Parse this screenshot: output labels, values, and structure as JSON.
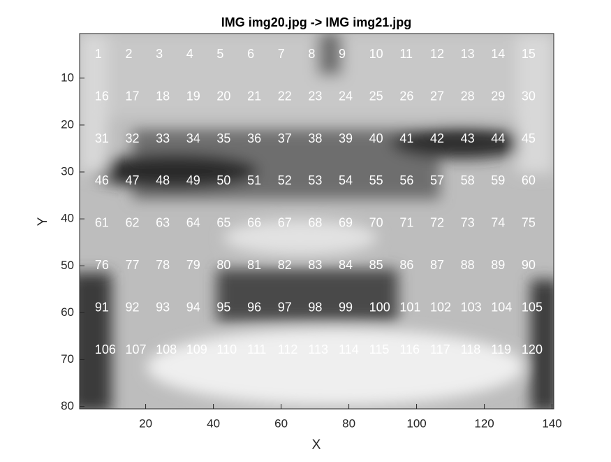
{
  "chart_data": {
    "type": "image",
    "title": "IMG img20.jpg -> IMG img21.jpg",
    "x_label": "X",
    "y_label": "Y",
    "xlim": [
      0.5,
      140.5
    ],
    "xticks": [
      20,
      40,
      60,
      80,
      100,
      120,
      140
    ],
    "ylim": [
      0.5,
      80.5
    ],
    "yticks": [
      10,
      20,
      30,
      40,
      50,
      60,
      70,
      80
    ],
    "y_reversed": true,
    "grid_x": [
      5,
      14,
      23,
      32,
      41,
      50,
      59,
      68,
      77,
      86,
      95,
      104,
      113,
      122,
      131
    ],
    "grid_y": [
      5,
      14,
      23,
      32,
      41,
      50,
      59,
      68
    ],
    "annotations": [
      "1",
      "2",
      "3",
      "4",
      "5",
      "6",
      "7",
      "8",
      "9",
      "10",
      "11",
      "12",
      "13",
      "14",
      "15",
      "16",
      "17",
      "18",
      "19",
      "20",
      "21",
      "22",
      "23",
      "24",
      "25",
      "26",
      "27",
      "28",
      "29",
      "30",
      "31",
      "32",
      "33",
      "34",
      "35",
      "36",
      "37",
      "38",
      "39",
      "40",
      "41",
      "42",
      "43",
      "44",
      "45",
      "46",
      "47",
      "48",
      "49",
      "50",
      "51",
      "52",
      "53",
      "54",
      "55",
      "56",
      "57",
      "58",
      "59",
      "60",
      "61",
      "62",
      "63",
      "64",
      "65",
      "66",
      "67",
      "68",
      "69",
      "70",
      "71",
      "72",
      "73",
      "74",
      "75",
      "76",
      "77",
      "78",
      "79",
      "80",
      "81",
      "82",
      "83",
      "84",
      "85",
      "86",
      "87",
      "88",
      "89",
      "90",
      "91",
      "92",
      "93",
      "94",
      "95",
      "96",
      "97",
      "98",
      "99",
      "100",
      "101",
      "102",
      "103",
      "104",
      "105",
      "106",
      "107",
      "108",
      "109",
      "110",
      "111",
      "112",
      "113",
      "114",
      "115",
      "116",
      "117",
      "118",
      "119",
      "120"
    ],
    "annotation_color": "#ffffff"
  }
}
